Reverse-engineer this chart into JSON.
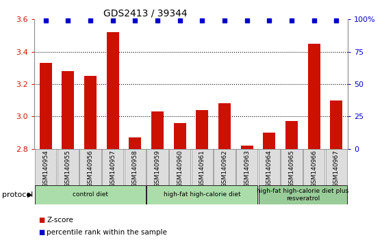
{
  "title": "GDS2413 / 39344",
  "samples": [
    "GSM140954",
    "GSM140955",
    "GSM140956",
    "GSM140957",
    "GSM140958",
    "GSM140959",
    "GSM140960",
    "GSM140961",
    "GSM140962",
    "GSM140963",
    "GSM140964",
    "GSM140965",
    "GSM140966",
    "GSM140967"
  ],
  "z_scores": [
    3.33,
    3.28,
    3.25,
    3.52,
    2.87,
    3.03,
    2.96,
    3.04,
    3.08,
    2.82,
    2.9,
    2.97,
    3.45,
    3.1
  ],
  "ylim_left": [
    2.8,
    3.6
  ],
  "ylim_right": [
    0,
    100
  ],
  "yticks_left": [
    2.8,
    3.0,
    3.2,
    3.4,
    3.6
  ],
  "yticks_right": [
    0,
    25,
    50,
    75,
    100
  ],
  "ytick_labels_right": [
    "0",
    "25",
    "50",
    "75",
    "100%"
  ],
  "bar_color": "#CC1100",
  "percentile_color": "#0000CC",
  "groups": [
    {
      "label": "control diet",
      "start": 0,
      "end": 4,
      "color": "#AADDAA"
    },
    {
      "label": "high-fat high-calorie diet",
      "start": 5,
      "end": 9,
      "color": "#AADDAA"
    },
    {
      "label": "high-fat high-calorie diet plus\nresveratrol",
      "start": 10,
      "end": 13,
      "color": "#99CC99"
    }
  ],
  "bar_width": 0.55,
  "grid_color": "#000000",
  "tick_label_color_left": "#CC1100",
  "tick_label_color_right": "#0000CC",
  "sample_bg_color": "#DDDDDD",
  "sample_border_color": "#888888"
}
